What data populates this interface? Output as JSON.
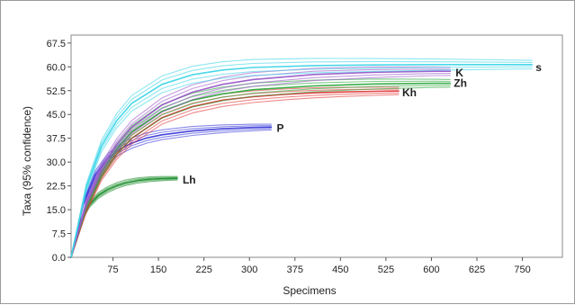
{
  "chart_data": {
    "type": "line",
    "title": "",
    "xlabel": "Specimens",
    "ylabel": "Taxa (95% confidence)",
    "xlim": [
      0,
      810
    ],
    "ylim": [
      0,
      70
    ],
    "x_ticks": [
      "75",
      "150",
      "225",
      "300",
      "375",
      "450",
      "525",
      "600",
      "625",
      "750"
    ],
    "y_ticks": [
      "0.0",
      "7.5",
      "15.0",
      "22.5",
      "30.0",
      "37.5",
      "45.0",
      "52.5",
      "60.0",
      "67.5"
    ],
    "grid": false,
    "legend": "none",
    "series": [
      {
        "name": "s",
        "color": "#3fd6e8",
        "x": [
          0,
          25,
          50,
          75,
          100,
          150,
          200,
          250,
          300,
          400,
          500,
          600,
          700,
          760
        ],
        "y": [
          0,
          22,
          35,
          43,
          48.5,
          54.5,
          57.5,
          59,
          59.8,
          60.4,
          60.6,
          60.7,
          60.7,
          60.7
        ]
      },
      {
        "name": "K",
        "color": "#9b59c9",
        "x": [
          0,
          25,
          50,
          75,
          100,
          150,
          200,
          250,
          300,
          400,
          500,
          600,
          625
        ],
        "y": [
          0,
          17,
          28,
          35.5,
          41,
          48,
          52,
          54.5,
          56,
          57.6,
          58.3,
          58.6,
          58.6
        ]
      },
      {
        "name": "Zh",
        "color": "#2faa3f",
        "x": [
          0,
          25,
          50,
          75,
          100,
          150,
          200,
          250,
          300,
          400,
          500,
          600,
          625
        ],
        "y": [
          0,
          16,
          26.5,
          34,
          39.5,
          46,
          49.5,
          51.5,
          52.8,
          54,
          54.6,
          54.8,
          54.8
        ]
      },
      {
        "name": "Kh",
        "color": "#e2383a",
        "x": [
          0,
          25,
          50,
          75,
          100,
          150,
          200,
          250,
          300,
          350,
          400,
          450,
          500,
          540
        ],
        "y": [
          0,
          15,
          25.5,
          32.5,
          37.5,
          44,
          47.5,
          49.5,
          50.6,
          51.3,
          51.8,
          52.1,
          52.3,
          52.4
        ]
      },
      {
        "name": "P",
        "color": "#3a3ad8",
        "x": [
          0,
          20,
          40,
          60,
          80,
          100,
          125,
          150,
          200,
          250,
          300,
          330
        ],
        "y": [
          0,
          17,
          26,
          31,
          34,
          36,
          37.6,
          38.6,
          39.8,
          40.5,
          40.9,
          41
        ]
      },
      {
        "name": "Lh",
        "color": "#1f8f2f",
        "x": [
          0,
          15,
          30,
          45,
          60,
          75,
          90,
          110,
          130,
          150,
          175
        ],
        "y": [
          0,
          11,
          16.5,
          19.5,
          21.3,
          22.6,
          23.5,
          24.2,
          24.6,
          24.8,
          24.9
        ]
      }
    ]
  }
}
